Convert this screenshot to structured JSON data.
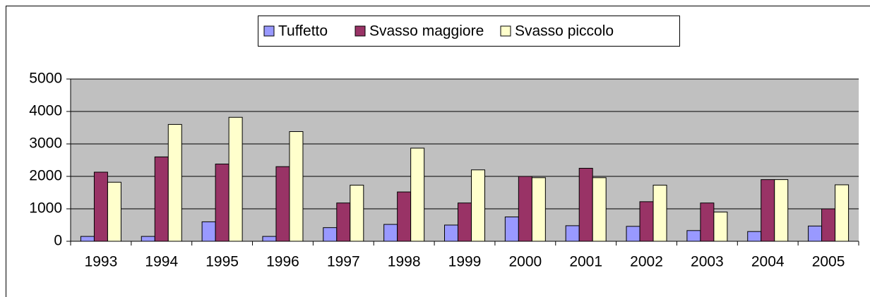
{
  "chart_data": {
    "type": "bar",
    "categories": [
      "1993",
      "1994",
      "1995",
      "1996",
      "1997",
      "1998",
      "1999",
      "2000",
      "2001",
      "2002",
      "2003",
      "2004",
      "2005"
    ],
    "series": [
      {
        "name": "Tuffetto",
        "color": "#9999ff",
        "values": [
          150,
          150,
          600,
          150,
          420,
          520,
          500,
          750,
          480,
          460,
          330,
          300,
          470
        ]
      },
      {
        "name": "Svasso maggiore",
        "color": "#993366",
        "values": [
          2130,
          2600,
          2380,
          2300,
          1180,
          1520,
          1180,
          2000,
          2250,
          1220,
          1180,
          1900,
          1000
        ]
      },
      {
        "name": "Svasso piccolo",
        "color": "#ffffcc",
        "values": [
          1820,
          3600,
          3820,
          3380,
          1730,
          2870,
          2200,
          1960,
          1960,
          1730,
          900,
          1900,
          1740
        ]
      }
    ],
    "ylim": [
      0,
      5000
    ],
    "yticks": [
      0,
      1000,
      2000,
      3000,
      4000,
      5000
    ],
    "grid": true,
    "legend": "top"
  }
}
